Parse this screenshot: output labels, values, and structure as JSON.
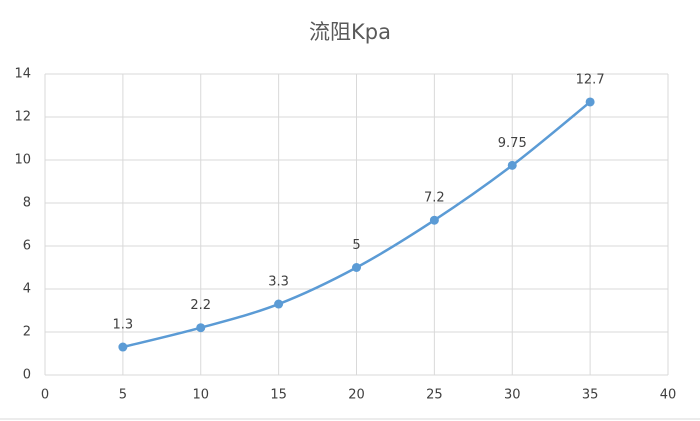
{
  "chart_data": {
    "type": "scatter_smooth",
    "title": "流阻Kpa",
    "x": [
      5,
      10,
      15,
      20,
      25,
      30,
      35
    ],
    "series": [
      {
        "color": "#5b9bd5",
        "values": [
          1.3,
          2.2,
          3.3,
          5,
          7.2,
          9.75,
          12.7
        ]
      }
    ],
    "xlim": [
      0,
      40
    ],
    "xticks": [
      0,
      5,
      10,
      15,
      20,
      25,
      30,
      35,
      40
    ],
    "ylim": [
      0,
      14
    ],
    "yticks": [
      0,
      2,
      4,
      6,
      8,
      10,
      12,
      14
    ],
    "grid": true
  }
}
